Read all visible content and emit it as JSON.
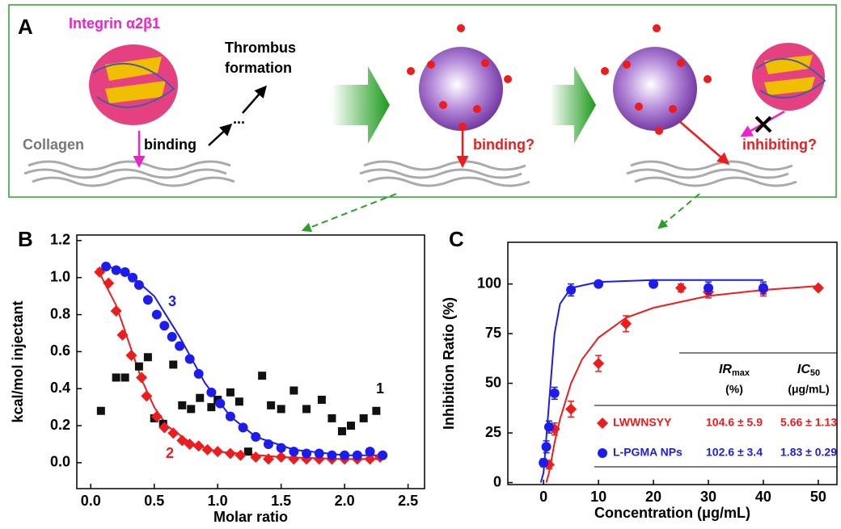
{
  "diagram": {
    "panel_a": "A",
    "panel_b": "B",
    "panel_c": "C",
    "integrin": "Integrin α2β1",
    "thrombus": [
      "Thrombus",
      "formation"
    ],
    "collagen": "Collagen",
    "binding": "binding",
    "dots": "...",
    "binding_q": "binding?",
    "inhibiting_q": "inhibiting?"
  },
  "chart_data": [
    {
      "type": "scatter",
      "x_label": "Molar ratio",
      "y_label": "kcal/mol injectant",
      "xlim": [
        -0.11,
        2.63
      ],
      "ylim": [
        -0.14,
        1.23
      ],
      "xticks": [
        {
          "value": 0,
          "label": "0.0"
        },
        {
          "value": 0.5,
          "label": "0.5"
        },
        {
          "value": 1,
          "label": "1.0"
        },
        {
          "value": 1.5,
          "label": "1.5"
        },
        {
          "value": 2,
          "label": "2.0"
        },
        {
          "value": 2.5,
          "label": "2.5"
        }
      ],
      "yticks": [
        {
          "value": 0,
          "label": "0.0"
        },
        {
          "value": 0.2,
          "label": "0.2"
        },
        {
          "value": 0.4,
          "label": "0.4"
        },
        {
          "value": 0.6,
          "label": "0.6"
        },
        {
          "value": 0.8,
          "label": "0.8"
        },
        {
          "value": 1,
          "label": "1.0"
        },
        {
          "value": 1.2,
          "label": "1.2"
        }
      ],
      "series": [
        {
          "name": "1",
          "color": "#111111",
          "marker": "square",
          "x": [
            0.08,
            0.2,
            0.27,
            0.38,
            0.45,
            0.5,
            0.57,
            0.65,
            0.72,
            0.79,
            0.86,
            0.95,
            1.0,
            1.1,
            1.17,
            1.24,
            1.35,
            1.42,
            1.5,
            1.6,
            1.7,
            1.82,
            1.9,
            1.98,
            2.05,
            2.15,
            2.25
          ],
          "values": [
            0.28,
            0.46,
            0.46,
            0.52,
            0.57,
            0.24,
            0.21,
            0.53,
            0.31,
            0.29,
            0.35,
            0.3,
            0.34,
            0.38,
            0.33,
            0.06,
            0.47,
            0.31,
            0.29,
            0.39,
            0.29,
            0.34,
            0.24,
            0.17,
            0.2,
            0.24,
            0.28
          ]
        },
        {
          "name": "2",
          "color": "#ee1c1c",
          "marker": "diamond",
          "x": [
            0.07,
            0.14,
            0.2,
            0.25,
            0.32,
            0.4,
            0.44,
            0.52,
            0.58,
            0.65,
            0.72,
            0.78,
            0.85,
            0.92,
            1.0,
            1.1,
            1.18,
            1.3,
            1.4,
            1.5,
            1.6,
            1.7,
            1.8,
            1.9,
            2.0,
            2.1,
            2.2,
            2.28
          ],
          "values": [
            1.03,
            0.97,
            0.82,
            0.69,
            0.58,
            0.46,
            0.36,
            0.25,
            0.19,
            0.16,
            0.12,
            0.1,
            0.09,
            0.07,
            0.06,
            0.05,
            0.04,
            0.03,
            0.02,
            0.03,
            0.02,
            0.02,
            0.02,
            0.02,
            0.02,
            0.02,
            0.02,
            0.03
          ]
        },
        {
          "name": "3",
          "color": "#1c1cee",
          "marker": "circle",
          "x": [
            0.12,
            0.2,
            0.27,
            0.33,
            0.38,
            0.45,
            0.52,
            0.58,
            0.64,
            0.7,
            0.78,
            0.85,
            0.95,
            1.02,
            1.1,
            1.2,
            1.3,
            1.4,
            1.5,
            1.6,
            1.7,
            1.8,
            1.9,
            2.0,
            2.1,
            2.2,
            2.3
          ],
          "values": [
            1.06,
            1.04,
            1.03,
            1.0,
            0.96,
            0.88,
            0.8,
            0.74,
            0.68,
            0.63,
            0.56,
            0.48,
            0.38,
            0.32,
            0.25,
            0.19,
            0.14,
            0.1,
            0.08,
            0.06,
            0.05,
            0.05,
            0.04,
            0.04,
            0.04,
            0.06,
            0.04
          ]
        }
      ],
      "fits": [
        {
          "color": "#ee1c1c",
          "x": [
            0.05,
            0.2,
            0.3,
            0.4,
            0.5,
            0.6,
            0.8,
            1.0,
            1.5,
            2.0,
            2.3
          ],
          "values": [
            1.05,
            0.85,
            0.65,
            0.45,
            0.3,
            0.2,
            0.1,
            0.06,
            0.03,
            0.02,
            0.02
          ]
        },
        {
          "color": "#1c1cee",
          "x": [
            0.1,
            0.3,
            0.5,
            0.7,
            0.9,
            1.1,
            1.3,
            1.6,
            2.0,
            2.3
          ],
          "values": [
            1.07,
            1.02,
            0.9,
            0.68,
            0.43,
            0.25,
            0.14,
            0.07,
            0.04,
            0.04
          ]
        }
      ]
    },
    {
      "type": "scatter",
      "x_label": "Concentration (μg/mL)",
      "y_label": "Inhibition Ratio (%)",
      "xlim": [
        -6.5,
        53.4
      ],
      "ylim": [
        -1,
        121
      ],
      "xticks": [
        0,
        10,
        20,
        30,
        40,
        50
      ],
      "yticks": [
        0,
        25,
        50,
        75,
        100
      ],
      "series": [
        {
          "name": "LWWNSYY",
          "color": "#ee1c1c",
          "marker": "diamond",
          "x": [
            1,
            2,
            5,
            10,
            15,
            25,
            30,
            40,
            50
          ],
          "values": [
            9,
            27,
            37,
            60,
            80,
            98,
            96,
            97,
            98
          ],
          "errors": [
            2,
            3,
            4,
            4,
            4,
            2,
            3,
            3,
            1
          ]
        },
        {
          "name": "L-PGMA NPs",
          "color": "#1c1cee",
          "marker": "circle",
          "x": [
            0,
            0.5,
            1,
            2,
            5,
            10,
            20,
            30,
            40
          ],
          "values": [
            10,
            18,
            28,
            45,
            97,
            100,
            100,
            98,
            98
          ],
          "errors": [
            2,
            3,
            3,
            3,
            3,
            1,
            1,
            3,
            3
          ]
        }
      ],
      "fits": [
        {
          "color": "#ee1c1c",
          "x": [
            0.5,
            1,
            2,
            3,
            5,
            7,
            10,
            15,
            20,
            30,
            40,
            50
          ],
          "values": [
            0,
            5,
            20,
            32,
            50,
            62,
            73,
            83,
            88,
            94,
            97,
            99
          ]
        },
        {
          "color": "#1c1cee",
          "x": [
            -0.5,
            0,
            1,
            2,
            3,
            5,
            10,
            20,
            40
          ],
          "values": [
            0,
            5,
            40,
            75,
            90,
            98,
            101,
            102,
            102
          ]
        }
      ],
      "table": {
        "headers": [
          {
            "main": "IR",
            "sub": "max",
            "unit": "(%)"
          },
          {
            "main": "IC",
            "sub": "50",
            "unit": "(μg/mL)"
          }
        ],
        "rows": [
          [
            "104.6 ± 5.9",
            "5.66 ± 1.13"
          ],
          [
            "102.6 ± 3.4",
            "1.83 ± 0.29"
          ]
        ]
      }
    }
  ]
}
